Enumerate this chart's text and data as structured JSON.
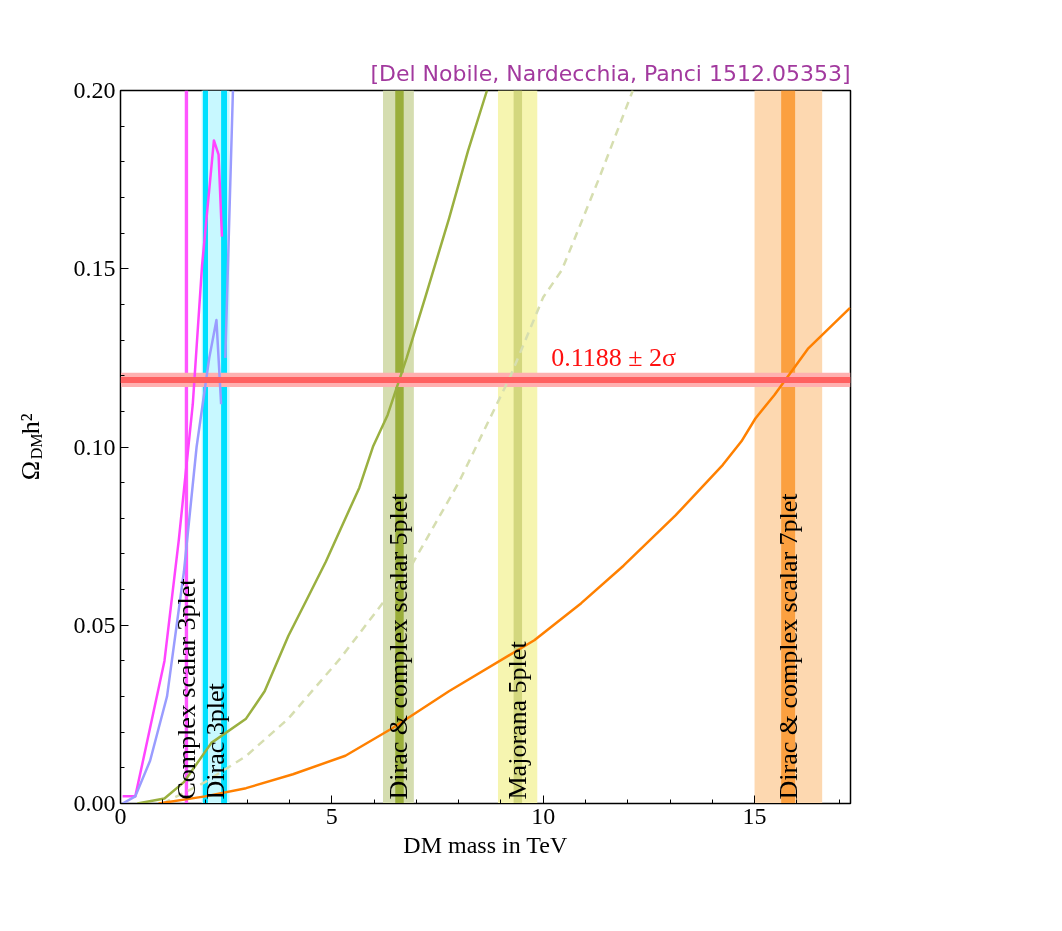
{
  "chart_data": {
    "type": "line",
    "title": "[Del Nobile, Nardecchia, Panci 1512.05353]",
    "xlabel": "DM mass in TeV",
    "ylabel": "Ω$_{DM}$h²",
    "xlim": [
      0,
      17.27
    ],
    "ylim": [
      0,
      0.2
    ],
    "xticks": [
      0,
      5,
      10,
      15
    ],
    "yticks": [
      {
        "value": 0,
        "label": "0.00"
      },
      {
        "value": 0.05,
        "label": "0.05"
      },
      {
        "value": 0.1,
        "label": "0.10"
      },
      {
        "value": 0.15,
        "label": "0.15"
      },
      {
        "value": 0.2,
        "label": "0.20"
      }
    ],
    "grid": false,
    "line_style": "solid",
    "marker": "none",
    "series": [
      {
        "color": "#ff44ff",
        "x": [
          0.05,
          0.35,
          0.6,
          1.04,
          1.38,
          1.71,
          1.93,
          2.21,
          2.32,
          2.4
        ],
        "values": [
          0.002,
          0.002,
          0.0157,
          0.04,
          0.074,
          0.112,
          0.151,
          0.186,
          0.182,
          0.159
        ]
      },
      {
        "color": "#9a9cff",
        "x": [
          0.05,
          0.35,
          0.7,
          1.1,
          1.5,
          1.8,
          2.1,
          2.27,
          2.38,
          2.42,
          2.48,
          2.66
        ],
        "values": [
          0.0,
          0.002,
          0.012,
          0.03,
          0.065,
          0.1,
          0.125,
          0.1356,
          0.112,
          null,
          0.125,
          0.2
        ]
      },
      {
        "color": "#9ab040",
        "x": [
          0.4,
          1.04,
          1.5,
          2.15,
          2.97,
          3.41,
          3.97,
          4.42,
          4.86,
          5.65,
          5.98,
          6.32,
          6.77,
          7.21,
          7.77,
          8.22,
          8.67
        ],
        "values": [
          0.0,
          0.0014,
          0.006,
          0.017,
          0.0238,
          0.0315,
          0.047,
          0.0575,
          0.0679,
          0.0886,
          0.1003,
          0.109,
          0.125,
          0.142,
          0.164,
          0.183,
          0.2
        ]
      },
      {
        "color": "#d6deb0",
        "line_style": "dashed",
        "x": [
          1.0,
          2.0,
          2.97,
          3.97,
          5.2,
          6.88,
          8.0,
          9.23,
          10.0,
          10.44,
          10.9,
          11.33,
          12.12
        ],
        "values": [
          0.0,
          0.006,
          0.0133,
          0.0238,
          0.0407,
          0.0667,
          0.09,
          0.12,
          0.142,
          0.1496,
          0.163,
          0.1756,
          0.2
        ]
      },
      {
        "color": "#ff8000",
        "x": [
          0.9,
          2.0,
          2.97,
          4.08,
          5.32,
          6.43,
          7.77,
          9.79,
          10.9,
          11.9,
          13.13,
          14.25,
          14.69,
          15.02,
          15.47,
          16.26,
          17.26
        ],
        "values": [
          0.0,
          0.002,
          0.0043,
          0.0082,
          0.0134,
          0.0211,
          0.0315,
          0.0458,
          0.0562,
          0.0667,
          0.0808,
          0.095,
          0.1016,
          0.108,
          0.1146,
          0.1275,
          0.139
        ]
      }
    ],
    "bands": [
      {
        "axis": "x",
        "from": 1.52,
        "to": 1.6,
        "color": "#ff55ff",
        "label": "Complex scalar 3plet"
      },
      {
        "axis": "x",
        "from": 1.92,
        "to": 2.58,
        "color": "#c8f8ff",
        "label": "Dirac 3plet"
      },
      {
        "axis": "x",
        "from": 1.95,
        "to": 2.07,
        "color": "#00e0ff"
      },
      {
        "axis": "x",
        "from": 2.38,
        "to": 2.52,
        "color": "#00e0ff"
      },
      {
        "axis": "x",
        "from": 6.21,
        "to": 6.94,
        "color": "#d5ddb0",
        "label": "Dirac & complex scalar 5plet"
      },
      {
        "axis": "x",
        "from": 6.5,
        "to": 6.7,
        "color": "#9aae3a"
      },
      {
        "axis": "x",
        "from": 8.93,
        "to": 9.86,
        "color": "#f6f5b0",
        "label": "Majorana 5plet"
      },
      {
        "axis": "x",
        "from": 9.3,
        "to": 9.5,
        "color": "#d3d77e"
      },
      {
        "axis": "x",
        "from": 15.0,
        "to": 16.6,
        "color": "#fdd8b0",
        "label": "Dirac & complex scalar 7plet"
      },
      {
        "axis": "x",
        "from": 15.63,
        "to": 15.96,
        "color": "#fba040"
      },
      {
        "axis": "y",
        "from": 0.1168,
        "to": 0.1208,
        "color": "#ffb0b0"
      }
    ],
    "ref_lines": [
      {
        "axis": "y",
        "value": 0.1188,
        "label": "0.1188 ± 2σ",
        "color": "#ff6060"
      }
    ]
  }
}
